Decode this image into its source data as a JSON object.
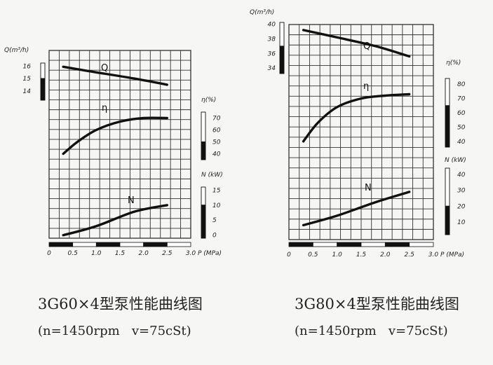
{
  "chart_data": [
    {
      "type": "line",
      "caption": "3G60×4型泵性能曲线图",
      "subcaption": "(n=1450rpm   v=75cSt)",
      "x": {
        "label": "P (MPa)",
        "range": [
          0,
          3.0
        ],
        "ticks": [
          "0",
          "0.5",
          "1.0",
          "1.5",
          "2.0",
          "2.5",
          "3.0"
        ],
        "tick_values": [
          0,
          0.5,
          1.0,
          1.5,
          2.0,
          2.5,
          3.0
        ]
      },
      "axes": {
        "Q": {
          "label": "Q(m³/h)",
          "range": [
            13.25,
            16.25
          ],
          "ticks": [
            "16",
            "15",
            "14"
          ],
          "tick_values": [
            16,
            15,
            14
          ],
          "bar_split": 15
        },
        "eta": {
          "label": "η(%)",
          "range": [
            35,
            75
          ],
          "ticks": [
            "70",
            "60",
            "50",
            "40"
          ],
          "tick_values": [
            70,
            60,
            50,
            40
          ],
          "bar_split": 50
        },
        "N": {
          "label": "N (kW)",
          "range": [
            -1,
            16
          ],
          "ticks": [
            "15",
            "10",
            "5",
            "0"
          ],
          "tick_values": [
            15,
            10,
            5,
            0
          ],
          "bar_split": 10
        }
      },
      "series": [
        {
          "name": "Q",
          "axis": "Q",
          "x": [
            0.3,
            1.0,
            1.8,
            2.5
          ],
          "y": [
            15.95,
            15.5,
            15.0,
            14.5
          ]
        },
        {
          "name": "η",
          "axis": "eta",
          "x": [
            0.3,
            0.6,
            1.0,
            1.5,
            2.0,
            2.5
          ],
          "y": [
            40,
            50,
            60,
            67,
            70,
            70
          ]
        },
        {
          "name": "N",
          "axis": "N",
          "x": [
            0.3,
            1.0,
            1.8,
            2.5
          ],
          "y": [
            0,
            3,
            7.8,
            10
          ]
        }
      ]
    },
    {
      "type": "line",
      "caption": "3G80×4型泵性能曲线图",
      "subcaption": "(n=1450rpm   v=75cSt)",
      "x": {
        "label": "P (MPa)",
        "range": [
          0,
          3.0
        ],
        "ticks": [
          "0",
          "0.5",
          "1.0",
          "1.5",
          "2.0",
          "2.5",
          "3.0"
        ],
        "tick_values": [
          0,
          0.5,
          1.0,
          1.5,
          2.0,
          2.5,
          3.0
        ]
      },
      "axes": {
        "Q": {
          "label": "Q(m³/h)",
          "range": [
            33.25,
            40.25
          ],
          "ticks": [
            "40",
            "38",
            "36",
            "34"
          ],
          "tick_values": [
            40,
            38,
            36,
            34
          ],
          "bar_split": 37
        },
        "eta": {
          "label": "η(%)",
          "range": [
            36,
            84
          ],
          "ticks": [
            "80",
            "70",
            "60",
            "50",
            "40"
          ],
          "tick_values": [
            80,
            70,
            60,
            50,
            40
          ],
          "bar_split": 65
        },
        "N": {
          "label": "N (kW)",
          "range": [
            2,
            44
          ],
          "ticks": [
            "40",
            "30",
            "20",
            "10"
          ],
          "tick_values": [
            40,
            30,
            20,
            10
          ],
          "bar_split": 20
        }
      },
      "series": [
        {
          "name": "Q",
          "axis": "Q",
          "x": [
            0.3,
            1.0,
            1.8,
            2.5
          ],
          "y": [
            39.2,
            38.2,
            37.0,
            35.6
          ]
        },
        {
          "name": "η",
          "axis": "eta",
          "x": [
            0.3,
            0.6,
            1.0,
            1.5,
            2.0,
            2.5
          ],
          "y": [
            40,
            53,
            64,
            70,
            72,
            73
          ]
        },
        {
          "name": "N",
          "axis": "N",
          "x": [
            0.3,
            1.0,
            1.8,
            2.5
          ],
          "y": [
            8,
            14,
            22.5,
            29
          ]
        }
      ]
    }
  ]
}
